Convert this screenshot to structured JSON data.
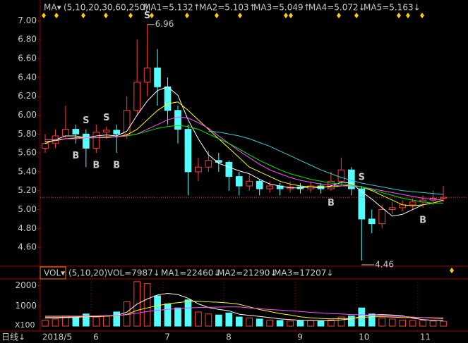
{
  "chart_data": {
    "type": "candlestick",
    "indicator_label": "MA▾",
    "indicator_params": "(5,10,20,30,60,250)",
    "period_label": "日线↓",
    "categories": [
      "2018/5",
      null,
      null,
      null,
      null,
      "6",
      null,
      null,
      null,
      null,
      null,
      null,
      "7",
      null,
      null,
      null,
      null,
      null,
      "8",
      null,
      null,
      null,
      null,
      null,
      null,
      "9",
      null,
      null,
      null,
      null,
      null,
      "10",
      null,
      null,
      null,
      null,
      null,
      "11",
      null,
      null
    ],
    "ohlc": [
      [
        5.65,
        5.8,
        5.6,
        5.7
      ],
      [
        5.7,
        5.85,
        5.65,
        5.78
      ],
      [
        5.78,
        6.1,
        5.75,
        5.85
      ],
      [
        5.85,
        5.9,
        5.7,
        5.8
      ],
      [
        5.8,
        5.85,
        5.45,
        5.65
      ],
      [
        5.65,
        5.9,
        5.6,
        5.82
      ],
      [
        5.82,
        5.88,
        5.75,
        5.84
      ],
      [
        5.84,
        5.9,
        5.6,
        5.8
      ],
      [
        5.8,
        6.2,
        5.75,
        6.05
      ],
      [
        6.05,
        6.8,
        6.0,
        6.35
      ],
      [
        6.35,
        6.96,
        6.2,
        6.5
      ],
      [
        6.5,
        6.7,
        6.1,
        6.3
      ],
      [
        6.3,
        6.4,
        5.9,
        6.05
      ],
      [
        6.05,
        6.1,
        5.7,
        5.85
      ],
      [
        5.85,
        5.9,
        5.15,
        5.4
      ],
      [
        5.4,
        5.55,
        5.3,
        5.45
      ],
      [
        5.45,
        5.62,
        5.4,
        5.52
      ],
      [
        5.52,
        5.6,
        5.4,
        5.5
      ],
      [
        5.5,
        5.52,
        5.2,
        5.35
      ],
      [
        5.35,
        5.4,
        5.15,
        5.25
      ],
      [
        5.25,
        5.38,
        5.2,
        5.3
      ],
      [
        5.3,
        5.32,
        5.15,
        5.22
      ],
      [
        5.22,
        5.3,
        5.18,
        5.25
      ],
      [
        5.25,
        5.28,
        5.15,
        5.22
      ],
      [
        5.22,
        5.3,
        5.18,
        5.24
      ],
      [
        5.24,
        5.28,
        5.17,
        5.22
      ],
      [
        5.22,
        5.3,
        5.18,
        5.25
      ],
      [
        5.25,
        5.28,
        5.17,
        5.22
      ],
      [
        5.22,
        5.4,
        5.2,
        5.3
      ],
      [
        5.3,
        5.55,
        5.25,
        5.42
      ],
      [
        5.42,
        5.45,
        5.15,
        5.22
      ],
      [
        5.22,
        5.25,
        4.46,
        4.9
      ],
      [
        4.9,
        5.0,
        4.75,
        4.85
      ],
      [
        4.85,
        5.05,
        4.8,
        5.0
      ],
      [
        5.0,
        5.08,
        4.95,
        5.02
      ],
      [
        5.02,
        5.1,
        4.98,
        5.05
      ],
      [
        5.05,
        5.12,
        5.0,
        5.08
      ],
      [
        5.08,
        5.15,
        5.02,
        5.1
      ],
      [
        5.1,
        5.2,
        5.05,
        5.12
      ],
      [
        5.12,
        5.25,
        5.08,
        5.13
      ]
    ],
    "signals": [
      null,
      null,
      null,
      "B",
      "S",
      "B",
      "S",
      "B",
      null,
      null,
      "S",
      null,
      null,
      null,
      null,
      null,
      null,
      null,
      null,
      null,
      null,
      null,
      null,
      null,
      null,
      null,
      null,
      null,
      "B",
      null,
      null,
      "S",
      null,
      null,
      null,
      null,
      null,
      "B",
      null,
      null
    ],
    "annotations": [
      {
        "text": "6.96"
      },
      {
        "text": "4.46"
      }
    ],
    "ylim": [
      4.4,
      7.07
    ],
    "yticks": [
      {
        "value": 4.6,
        "label": "4.60"
      },
      {
        "value": 4.8,
        "label": "4.80"
      },
      {
        "value": 5.0,
        "label": "5.00"
      },
      {
        "value": 5.2,
        "label": "5.20"
      },
      {
        "value": 5.4,
        "label": "5.40"
      },
      {
        "value": 5.6,
        "label": "5.60"
      },
      {
        "value": 5.8,
        "label": "5.80"
      },
      {
        "value": 6.0,
        "label": "6.00"
      },
      {
        "value": 6.2,
        "label": "6.20"
      },
      {
        "value": 6.4,
        "label": "6.40"
      },
      {
        "value": 6.6,
        "label": "6.60"
      },
      {
        "value": 6.8,
        "label": "6.80"
      },
      {
        "value": 7.0,
        "label": "7.00"
      }
    ],
    "up_color": "#ff3c3c",
    "down_color": "#54fcfc",
    "series": [
      {
        "name": "MA1=5.132↑",
        "color": "#ffffff",
        "values": [
          5.7,
          5.74,
          5.78,
          5.78,
          5.76,
          5.78,
          5.79,
          5.78,
          5.83,
          6.0,
          6.15,
          6.26,
          6.3,
          6.21,
          5.95,
          5.75,
          5.58,
          5.49,
          5.45,
          5.41,
          5.38,
          5.32,
          5.27,
          5.25,
          5.23,
          5.23,
          5.24,
          5.23,
          5.25,
          5.29,
          5.28,
          5.19,
          5.11,
          5.02,
          4.93,
          4.95,
          5.0,
          5.05,
          5.07,
          5.1
        ]
      },
      {
        "name": "MA2=5.103↑",
        "color": "#ffff00",
        "values": [
          5.72,
          5.73,
          5.75,
          5.76,
          5.76,
          5.76,
          5.77,
          5.77,
          5.79,
          5.85,
          5.95,
          6.05,
          6.12,
          6.14,
          6.05,
          5.95,
          5.85,
          5.75,
          5.65,
          5.55,
          5.45,
          5.4,
          5.35,
          5.3,
          5.27,
          5.25,
          5.24,
          5.24,
          5.24,
          5.25,
          5.26,
          5.24,
          5.2,
          5.15,
          5.1,
          5.05,
          5.04,
          5.05,
          5.07,
          5.1
        ]
      },
      {
        "name": "MA3=5.049↑",
        "color": "#ff50ff",
        "values": [
          5.74,
          5.74,
          5.75,
          5.75,
          5.76,
          5.76,
          5.76,
          5.77,
          5.78,
          5.8,
          5.85,
          5.9,
          5.95,
          5.98,
          5.97,
          5.92,
          5.86,
          5.78,
          5.7,
          5.62,
          5.55,
          5.48,
          5.42,
          5.38,
          5.34,
          5.31,
          5.29,
          5.27,
          5.26,
          5.25,
          5.25,
          5.24,
          5.22,
          5.2,
          5.18,
          5.16,
          5.14,
          5.12,
          5.11,
          5.1
        ]
      },
      {
        "name": "MA4=5.072↓",
        "color": "#00e600",
        "values": [
          null,
          null,
          null,
          null,
          null,
          null,
          null,
          null,
          5.78,
          5.8,
          5.83,
          5.86,
          5.88,
          5.89,
          5.88,
          5.85,
          5.8,
          5.75,
          5.7,
          5.64,
          5.58,
          5.52,
          5.47,
          5.42,
          5.38,
          5.35,
          5.32,
          5.3,
          5.28,
          5.27,
          5.26,
          5.24,
          5.21,
          5.18,
          5.15,
          5.12,
          5.1,
          5.08,
          5.07,
          5.07
        ]
      },
      {
        "name": "MA5=5.163↓",
        "color": "#33cccc",
        "values": [
          null,
          null,
          null,
          null,
          null,
          null,
          null,
          null,
          null,
          null,
          null,
          null,
          null,
          null,
          null,
          null,
          5.83,
          5.82,
          5.8,
          5.78,
          5.75,
          5.71,
          5.67,
          5.62,
          5.57,
          5.52,
          5.47,
          5.42,
          5.38,
          5.34,
          5.31,
          5.28,
          5.26,
          5.24,
          5.22,
          5.2,
          5.19,
          5.18,
          5.17,
          5.16
        ]
      }
    ],
    "volume": {
      "type": "bar",
      "label": "VOL▾",
      "params": "(5,10,20)",
      "current": "VOL=7987↓",
      "unit_label": "X100",
      "values": [
        300,
        350,
        500,
        400,
        600,
        450,
        500,
        700,
        1200,
        2200,
        2100,
        1500,
        1100,
        900,
        1300,
        700,
        600,
        550,
        650,
        450,
        400,
        350,
        300,
        280,
        250,
        260,
        270,
        250,
        300,
        450,
        500,
        900,
        600,
        400,
        350,
        300,
        280,
        260,
        250,
        240
      ],
      "ylim": [
        0,
        2300
      ],
      "yticks": [
        1000,
        2000
      ],
      "series": [
        {
          "name": "MA1=22460↓",
          "color": "#ffffff",
          "values": [
            400,
            400,
            420,
            430,
            470,
            460,
            490,
            530,
            690,
            1090,
            1340,
            1540,
            1620,
            1560,
            1380,
            1100,
            920,
            830,
            760,
            590,
            530,
            480,
            420,
            360,
            320,
            290,
            280,
            270,
            270,
            310,
            360,
            480,
            550,
            570,
            550,
            510,
            390,
            320,
            290,
            270
          ]
        },
        {
          "name": "MA2=21290↓",
          "color": "#ffff00",
          "values": [
            450,
            450,
            450,
            460,
            470,
            480,
            490,
            510,
            580,
            780,
            900,
            1010,
            1100,
            1160,
            1220,
            1230,
            1200,
            1180,
            1140,
            1080,
            950,
            820,
            720,
            620,
            550,
            460,
            410,
            380,
            360,
            370,
            380,
            430,
            460,
            460,
            450,
            420,
            420,
            420,
            410,
            400
          ]
        },
        {
          "name": "MA3=17207↓",
          "color": "#ff50ff",
          "values": [
            500,
            500,
            500,
            500,
            500,
            510,
            520,
            530,
            560,
            640,
            720,
            780,
            830,
            860,
            900,
            920,
            930,
            940,
            950,
            950,
            900,
            860,
            820,
            790,
            760,
            720,
            680,
            650,
            620,
            600,
            570,
            560,
            540,
            520,
            500,
            480,
            450,
            420,
            390,
            370
          ]
        }
      ]
    }
  }
}
